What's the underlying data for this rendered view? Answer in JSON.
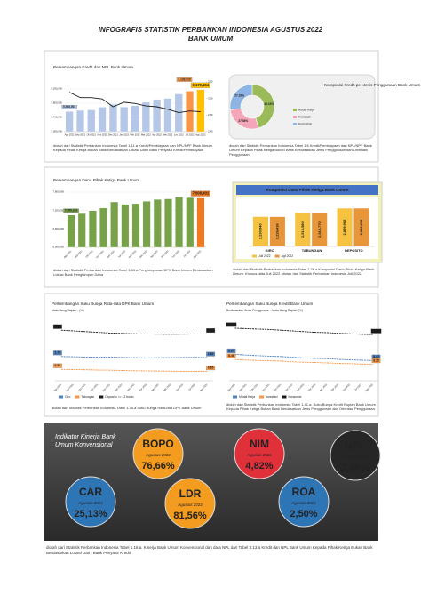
{
  "header": {
    "title": "INFOGRAFIS STATISTIK PERBANKAN INDONESIA AGUSTUS 2022",
    "subtitle": "BANK UMUM"
  },
  "chart_data": [
    {
      "type": "bar",
      "title": "Perkembangan Kredit dan NPL Bank Umum",
      "categories": [
        "Agu 2021",
        "Sep 2021",
        "Okt 2021",
        "Nov 2021",
        "Des 2021",
        "Jan 2022",
        "Feb 2022",
        "Mar 2022",
        "Apr 2022",
        "Mei 2022",
        "Jun 2022",
        "Jul 2022",
        "Agu 2022"
      ],
      "series": [
        {
          "color": "#b4c7e7",
          "colors": [
            "#b4c7e7",
            "#b4c7e7",
            "#b4c7e7",
            "#b4c7e7",
            "#b4c7e7",
            "#b4c7e7",
            "#b4c7e7",
            "#b4c7e7",
            "#b4c7e7",
            "#b4c7e7",
            "#b4c7e7",
            "#f79646",
            "#ffc000"
          ],
          "values": [
            5566001,
            5598270,
            5612233,
            5689122,
            5768582,
            5693214,
            5731582,
            5825014,
            5905121,
            5935215,
            6061332,
            6139523,
            6179454
          ],
          "value_labels": [
            "5,566,001",
            null,
            null,
            null,
            null,
            null,
            null,
            null,
            null,
            null,
            null,
            "6,139,523",
            "6,179,454"
          ]
        },
        {
          "type": "line",
          "axis": "y2",
          "color": "#1a1a1a",
          "values": [
            3.35,
            3.22,
            3.22,
            3.19,
            3.0,
            3.11,
            3.08,
            3.02,
            3.0,
            2.94,
            2.86,
            2.9,
            2.88
          ]
        }
      ],
      "ylim": [
        5000000,
        6400000
      ],
      "yticks": [
        {
          "value": 5000000,
          "label": "5,000,000"
        },
        {
          "value": 5400000,
          "label": "5,400,000"
        },
        {
          "value": 5800000,
          "label": "5,800,000"
        },
        {
          "value": 6200000,
          "label": "6,200,000"
        }
      ],
      "y2lim": [
        2.4,
        3.6
      ],
      "y2ticks": [
        {
          "value": 2.4,
          "label": "2.40"
        },
        {
          "value": 2.8,
          "label": "2.80"
        },
        {
          "value": 3.2,
          "label": "3.20"
        },
        {
          "value": 3.6,
          "label": "3.60"
        }
      ],
      "grid": true
    },
    {
      "type": "pie",
      "title": "Komposisi Kredit per Jenis Penggunaan Bank Umum",
      "categories": [
        "Modal Kerja",
        "Investasi",
        "Konsumsi"
      ],
      "values": [
        45.33,
        27.38,
        27.29
      ],
      "value_labels": [
        "45.33%",
        "27.38%",
        "27.29%"
      ],
      "colors": [
        "#9bbb59",
        "#f4a6b8",
        "#8db4e2"
      ]
    },
    {
      "type": "bar",
      "title": "Perkembangan Dana Pihak Ketiga Bank Umum",
      "categories": [
        "Agu 2021",
        "Sep 2021",
        "Okt 2021",
        "Nov 2021",
        "Des 2021",
        "Jan 2022",
        "Feb 2022",
        "Mar 2022",
        "Apr 2022",
        "Mei 2022",
        "Jun 2022",
        "Jul 2022",
        "Agu 2022"
      ],
      "series": [
        {
          "color": "#77a24a",
          "colors": [
            "#77a24a",
            "#77a24a",
            "#77a24a",
            "#77a24a",
            "#77a24a",
            "#77a24a",
            "#77a24a",
            "#77a24a",
            "#77a24a",
            "#77a24a",
            "#77a24a",
            "#77a24a",
            "#f07a22"
          ],
          "values": [
            7050343,
            7100125,
            7198012,
            7280440,
            7479648,
            7402310,
            7423552,
            7501873,
            7561240,
            7580112,
            7640331,
            7620980,
            7608401
          ],
          "value_labels": [
            "7,050,343",
            null,
            null,
            null,
            null,
            null,
            null,
            null,
            null,
            null,
            null,
            null,
            "7,608,401"
          ]
        }
      ],
      "ylim": [
        6000000,
        7800000
      ],
      "yticks": [
        {
          "value": 6000000,
          "label": "6,000,000"
        },
        {
          "value": 6600000,
          "label": "6,600,000"
        },
        {
          "value": 7200000,
          "label": "7,200,000"
        },
        {
          "value": 7800000,
          "label": "7,800,000"
        }
      ],
      "grid": true
    },
    {
      "type": "bar",
      "title": "Komposisi Dana Pihak Ketiga Bank Umum",
      "categories": [
        "GIRO",
        "TABUNGAN",
        "DEPOSITO"
      ],
      "series": [
        {
          "name": "Juli 2022",
          "color": "#f5c242",
          "values": [
            2230540,
            2513580,
            2859965
          ],
          "value_labels": [
            "2,230,540",
            "2,513,580",
            "2,859,965"
          ]
        },
        {
          "name": "Agt 2022",
          "color": "#e8963a",
          "values": [
            2226418,
            2519770,
            2862213
          ],
          "value_labels": [
            "2,226,418",
            "2,519,770",
            "2,862,213"
          ]
        }
      ],
      "ylim": [
        0,
        3000000
      ]
    },
    {
      "type": "line",
      "title": "Perkembangan Suku Bunga Rata-rata DPK Bank Umum",
      "subtitle": "Mata Uang Rupiah - (%)",
      "categories": [
        "Agu 2021",
        "Sep 2021",
        "Okt 2021",
        "Nov 2021",
        "Des 2021",
        "Jan 2022",
        "Feb 2022",
        "Mar 2022",
        "Apr 2022",
        "Mei 2022",
        "Jun 2022",
        "Jul 2022",
        "Agu 2022"
      ],
      "series": [
        {
          "name": "Giro",
          "color": "#4f81bd",
          "values": [
            1.7,
            1.68,
            1.66,
            1.65,
            1.66,
            1.63,
            1.62,
            1.6,
            1.61,
            1.62,
            1.63,
            1.64,
            1.62
          ],
          "value_labels": [
            "1.70",
            null,
            null,
            null,
            null,
            null,
            null,
            null,
            null,
            null,
            null,
            null,
            "1.62"
          ]
        },
        {
          "name": "Tabungan",
          "color": "#f79646",
          "values": [
            0.8,
            0.78,
            0.77,
            0.75,
            0.74,
            0.72,
            0.7,
            0.69,
            0.68,
            0.67,
            0.66,
            0.66,
            0.65
          ],
          "value_labels": [
            "0.80",
            null,
            null,
            null,
            null,
            null,
            null,
            null,
            null,
            null,
            null,
            null,
            "0.65"
          ]
        },
        {
          "name": "Deposito <= 12 bulan",
          "color": "#1a1a1a",
          "values": [
            3.55,
            3.5,
            3.45,
            3.4,
            3.35,
            3.32,
            3.3,
            3.28,
            3.27,
            3.26,
            3.27,
            3.28,
            3.28
          ],
          "value_labels": [
            "3.55",
            null,
            null,
            null,
            null,
            null,
            null,
            null,
            null,
            null,
            null,
            null,
            "3.28"
          ]
        }
      ],
      "ylim": [
        0,
        4
      ]
    },
    {
      "type": "line",
      "title": "Perkembangan Suku Bunga Kredit Bank Umum",
      "subtitle": "Berdasarkan Jenis Penggunaan - Mata Uang Rupiah (%)",
      "categories": [
        "Agu 2021",
        "Sep 2021",
        "Okt 2021",
        "Nov 2021",
        "Des 2021",
        "Jan 2022",
        "Feb 2022",
        "Mar 2022",
        "Apr 2022",
        "Mei 2022",
        "Jun 2022",
        "Jul 2022",
        "Agu 2022"
      ],
      "series": [
        {
          "name": "Modal Kerja",
          "color": "#4f81bd",
          "values": [
            8.85,
            8.8,
            8.76,
            8.72,
            8.7,
            8.65,
            8.6,
            8.57,
            8.55,
            8.5,
            8.47,
            8.44,
            8.42
          ],
          "value_labels": [
            "8.85",
            null,
            null,
            null,
            null,
            null,
            null,
            null,
            null,
            null,
            null,
            null,
            "8.42"
          ]
        },
        {
          "name": "Investasi",
          "color": "#f79646",
          "values": [
            8.49,
            8.45,
            8.42,
            8.4,
            8.38,
            8.33,
            8.3,
            8.28,
            8.25,
            8.22,
            8.2,
            8.17,
            8.15
          ],
          "value_labels": [
            "8.49",
            null,
            null,
            null,
            null,
            null,
            null,
            null,
            null,
            null,
            null,
            null,
            "8.15"
          ]
        },
        {
          "name": "Konsumsi",
          "color": "#1a1a1a",
          "values": [
            10.69,
            10.66,
            10.63,
            10.6,
            10.55,
            10.5,
            10.45,
            10.4,
            10.38,
            10.33,
            10.3,
            10.26,
            10.24
          ],
          "value_labels": [
            "10.69",
            null,
            null,
            null,
            null,
            null,
            null,
            null,
            null,
            null,
            null,
            null,
            "10.24"
          ]
        }
      ],
      "ylim": [
        7,
        11
      ]
    }
  ],
  "notes": [
    "diolah dari Statistik Perbankan Indonesia Tabel 1.11.a Kredit/Pembiayaan dan NPL/NPF Bank Umum Kepada Pihak Ketiga Bukan Bank Berdasarkan Lokasi Dati I Bank Penyalur Kredit/Pembiayaan",
    "diolah dari Statistik Perbankan Indonesia Tabel 1.6 Kredit/Pembiayaan dan NPL/NPF Bank Umum Kepada Pihak Ketiga Bukan Bank Berdasarkan Jenis Penggunaan dan Orientasi Penggunaan.",
    "diolah dari Statistik Perbankan Indonesia Tabel 1.34.a Penghimpunan DPK Bank Umum Berdasarkan Lokasi Bank Penghimpun Dana",
    "diolah dari Statistik Perbankan Indonesia Tabel 1.28.a Komposisi Dana Pihak Ketiga Bank Umum. Khusus data Juli 2022, diolah dari Statistik Perbankan Indonesia Juli 2022.",
    "diolah dari Statistik Perbankan Indonesia Tabel 1.35.a Suku Bunga Rata-rata DPK Bank Umum",
    "diolah dari Statistik Perbankan Indonesia Tabel 1.41.a. Suku Bunga Kredit Rupiah Bank Umum Kepada Pihak Ketiga Bukan Bank Berdasarkan Jenis Penggunaan dan Orientasi Penggunaan.",
    "diolah dari Statistik Perbankan Indonesia Tabel 1.16.a. Kinerja Bank Umum Konvensional dan data NPL dari Tabel 3.13.a Kredit dan NPL Bank Umum Kepada Pihak Ketiga Bukan Bank Berdasarkan Lokasi Dati I Bank Penyalur Kredit"
  ],
  "kpi": {
    "title": "Indikator Kinerja Bank Umum Konvensional",
    "items": [
      {
        "label": "BOPO",
        "period": "Agustus 2022",
        "value": "76,66%",
        "color": "#f39c1f"
      },
      {
        "label": "NIM",
        "period": "Agustus 2022",
        "value": "4,82%",
        "color": "#e0303a"
      },
      {
        "label": "NPL",
        "period": "Agustus 2022",
        "value": "2,88%",
        "color": "#262626"
      },
      {
        "label": "CAR",
        "period": "Agustus 2022",
        "value": "25,13%",
        "color": "#2e75b6"
      },
      {
        "label": "LDR",
        "period": "Agustus 2022",
        "value": "81,56%",
        "color": "#f39c1f"
      },
      {
        "label": "ROA",
        "period": "Agustus 2022",
        "value": "2,50%",
        "color": "#2e75b6"
      }
    ]
  }
}
